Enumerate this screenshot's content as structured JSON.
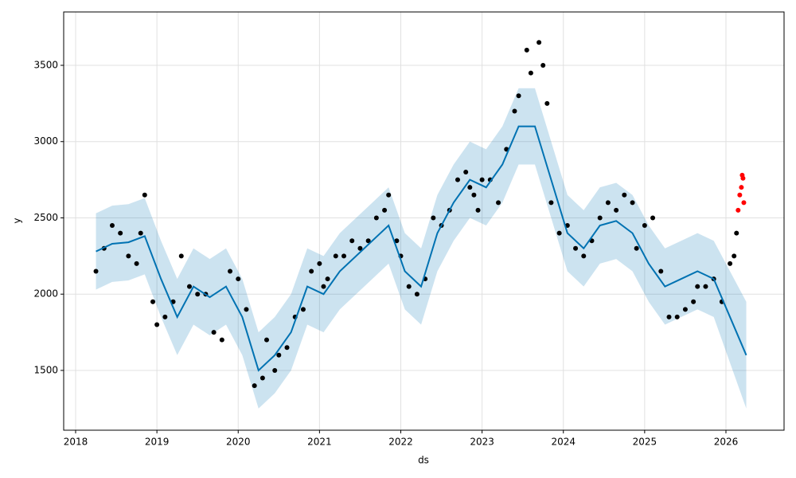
{
  "chart_data": {
    "type": "scatter",
    "xlabel": "ds",
    "ylabel": "y",
    "xlim": [
      2017.853,
      2026.715
    ],
    "ylim": [
      1108,
      3850
    ],
    "xticks": [
      2018,
      2019,
      2020,
      2021,
      2022,
      2023,
      2024,
      2025,
      2026
    ],
    "yticks": [
      1500,
      2000,
      2500,
      3000,
      3500
    ],
    "grid": true,
    "forecast": {
      "color": "#0072b2",
      "x": [
        2018.25,
        2018.45,
        2018.65,
        2018.85,
        2019.05,
        2019.25,
        2019.45,
        2019.65,
        2019.85,
        2020.05,
        2020.25,
        2020.45,
        2020.65,
        2020.85,
        2021.05,
        2021.25,
        2021.45,
        2021.65,
        2021.85,
        2022.05,
        2022.25,
        2022.45,
        2022.65,
        2022.85,
        2023.05,
        2023.25,
        2023.45,
        2023.65,
        2023.85,
        2024.05,
        2024.25,
        2024.45,
        2024.65,
        2024.85,
        2025.05,
        2025.25,
        2025.45,
        2025.65,
        2025.85,
        2026.05,
        2026.25
      ],
      "values": [
        2280,
        2330,
        2340,
        2380,
        2100,
        1850,
        2050,
        1980,
        2050,
        1850,
        1500,
        1600,
        1750,
        2050,
        2000,
        2150,
        2250,
        2350,
        2450,
        2150,
        2050,
        2400,
        2600,
        2750,
        2700,
        2850,
        3100,
        3100,
        2750,
        2400,
        2300,
        2450,
        2480,
        2400,
        2200,
        2050,
        2100,
        2150,
        2100,
        1850,
        1600
      ],
      "lower": [
        2030,
        2080,
        2090,
        2130,
        1850,
        1600,
        1800,
        1730,
        1800,
        1600,
        1250,
        1350,
        1500,
        1800,
        1750,
        1900,
        2000,
        2100,
        2200,
        1900,
        1800,
        2150,
        2350,
        2500,
        2450,
        2600,
        2850,
        2850,
        2500,
        2150,
        2050,
        2200,
        2230,
        2150,
        1950,
        1800,
        1850,
        1900,
        1850,
        1550,
        1250
      ],
      "upper": [
        2530,
        2580,
        2590,
        2630,
        2350,
        2100,
        2300,
        2230,
        2300,
        2100,
        1750,
        1850,
        2000,
        2300,
        2250,
        2400,
        2500,
        2600,
        2700,
        2400,
        2300,
        2650,
        2850,
        3000,
        2950,
        3100,
        3350,
        3350,
        3000,
        2650,
        2550,
        2700,
        2730,
        2650,
        2450,
        2300,
        2350,
        2400,
        2350,
        2150,
        1950
      ]
    },
    "series": [
      {
        "color": "#000000",
        "x": [
          2018.25,
          2018.35,
          2018.45,
          2018.55,
          2018.65,
          2018.75,
          2018.8,
          2018.85,
          2018.95,
          2019.0,
          2019.1,
          2019.2,
          2019.3,
          2019.4,
          2019.5,
          2019.6,
          2019.7,
          2019.8,
          2019.9,
          2020.0,
          2020.1,
          2020.2,
          2020.3,
          2020.35,
          2020.45,
          2020.5,
          2020.6,
          2020.7,
          2020.8,
          2020.9,
          2021.0,
          2021.05,
          2021.1,
          2021.2,
          2021.3,
          2021.4,
          2021.5,
          2021.6,
          2021.7,
          2021.8,
          2021.85,
          2021.95,
          2022.0,
          2022.1,
          2022.2,
          2022.3,
          2022.4,
          2022.5,
          2022.6,
          2022.7,
          2022.8,
          2022.85,
          2022.9,
          2022.95,
          2023.0,
          2023.1,
          2023.2,
          2023.3,
          2023.4,
          2023.45,
          2023.55,
          2023.6,
          2023.7,
          2023.75,
          2023.8,
          2023.85,
          2023.95,
          2024.05,
          2024.15,
          2024.25,
          2024.35,
          2024.45,
          2024.55,
          2024.65,
          2024.75,
          2024.85,
          2024.9,
          2025.0,
          2025.1,
          2025.2,
          2025.3,
          2025.4,
          2025.5,
          2025.6,
          2025.65,
          2025.75,
          2025.85,
          2025.95,
          2026.05,
          2026.1,
          2026.13
        ],
        "values": [
          2150,
          2300,
          2450,
          2400,
          2250,
          2200,
          2400,
          2650,
          1950,
          1800,
          1850,
          1950,
          2250,
          2050,
          2000,
          2000,
          1750,
          1700,
          2150,
          2100,
          1900,
          1400,
          1450,
          1700,
          1500,
          1600,
          1650,
          1850,
          1900,
          2150,
          2200,
          2050,
          2100,
          2250,
          2250,
          2350,
          2300,
          2350,
          2500,
          2550,
          2650,
          2350,
          2250,
          2050,
          2000,
          2100,
          2500,
          2450,
          2550,
          2750,
          2800,
          2700,
          2650,
          2550,
          2750,
          2750,
          2600,
          2950,
          3200,
          3300,
          3600,
          3450,
          3650,
          3500,
          3250,
          2600,
          2400,
          2450,
          2300,
          2250,
          2350,
          2500,
          2600,
          2550,
          2650,
          2600,
          2300,
          2450,
          2500,
          2150,
          1850,
          1850,
          1900,
          1950,
          2050,
          2050,
          2100,
          1950,
          2200,
          2250,
          2400
        ]
      },
      {
        "color": "#ff0000",
        "x": [
          2026.15,
          2026.17,
          2026.19,
          2026.2,
          2026.21,
          2026.22
        ],
        "values": [
          2550,
          2650,
          2700,
          2780,
          2760,
          2600
        ]
      }
    ]
  }
}
